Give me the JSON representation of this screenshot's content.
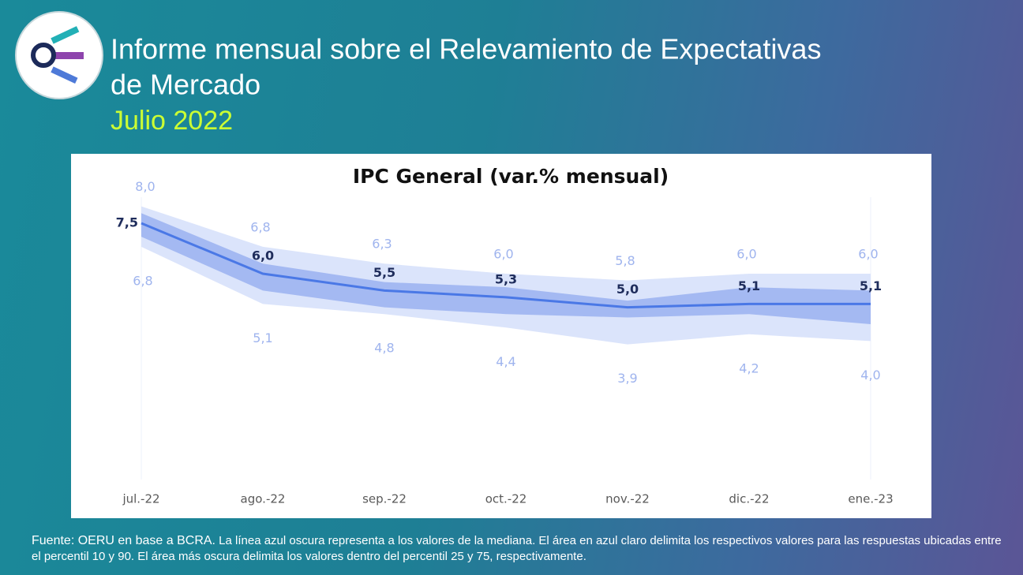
{
  "header": {
    "title_line1": "Informe mensual sobre el Relevamiento de Expectativas",
    "title_line2": "de Mercado",
    "subtitle": "Julio 2022"
  },
  "chart_data": {
    "type": "band-line",
    "title": "IPC General (var.% mensual)",
    "categories": [
      "jul.-22",
      "ago.-22",
      "sep.-22",
      "oct.-22",
      "nov.-22",
      "dic.-22",
      "ene.-23"
    ],
    "median": {
      "color": "#4a78e6",
      "values": [
        7.5,
        6.0,
        5.5,
        5.3,
        5.0,
        5.1,
        5.1
      ],
      "value_labels": [
        "7,5",
        "6,0",
        "5,5",
        "5,3",
        "5,0",
        "5,1",
        "5,1"
      ]
    },
    "p90": {
      "values": [
        8.0,
        6.8,
        6.3,
        6.0,
        5.8,
        6.0,
        6.0
      ],
      "value_labels": [
        "8,0",
        "6,8",
        "6,3",
        "6,0",
        "5,8",
        "6,0",
        "6,0"
      ]
    },
    "p10": {
      "values": [
        6.8,
        5.1,
        4.8,
        4.4,
        3.9,
        4.2,
        4.0
      ],
      "value_labels": [
        "6,8",
        "5,1",
        "4,8",
        "4,4",
        "3,9",
        "4,2",
        "4,0"
      ]
    },
    "p75": {
      "values": [
        7.8,
        6.3,
        5.75,
        5.6,
        5.2,
        5.6,
        5.5
      ]
    },
    "p25": {
      "values": [
        7.1,
        5.5,
        5.0,
        4.8,
        4.7,
        4.8,
        4.5
      ]
    },
    "outer_band_color": "#dbe4fb",
    "inner_band_color": "#a4b9f2",
    "ylim": [
      0,
      9
    ]
  },
  "footnote": {
    "source": "Fuente: OERU en base a BCRA.",
    "text": "La línea azul oscura representa a los valores de la mediana. El área en azul claro delimita los respectivos valores para las respuestas ubicadas entre el percentil 10 y 90. El área más oscura delimita los valores dentro del percentil 25 y 75, respectivamente."
  }
}
